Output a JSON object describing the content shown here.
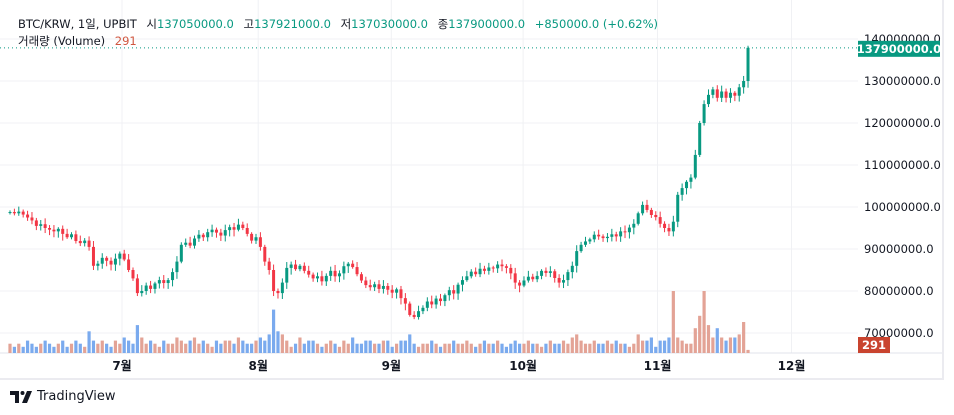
{
  "legend": {
    "symbol": "BTC/KRW, 1일, UPBIT",
    "open_label": "시",
    "open": "137050000.0",
    "high_label": "고",
    "high": "137921000.0",
    "low_label": "저",
    "low": "137030000.0",
    "close_label": "종",
    "close": "137900000.0",
    "change": "+850000.0 (+0.62%)",
    "volume_label": "거래량 (Volume)",
    "volume": "291"
  },
  "price_badge": "137900000.0",
  "volume_badge": "291",
  "brand": "TradingView",
  "colors": {
    "up": "#089981",
    "down": "#f23645",
    "vol_up": "#e3a396",
    "vol_down": "#7aaaee",
    "grid": "#f0f1f4",
    "badge_vol": "#c9442f"
  },
  "chart_data": {
    "type": "candlestick",
    "title": "BTC/KRW, 1일, UPBIT",
    "y_ticks": [
      "140000000.0",
      "130000000.0",
      "120000000.0",
      "110000000.0",
      "100000000.0",
      "90000000.0",
      "80000000.0",
      "70000000.0"
    ],
    "y_tick_values": [
      140,
      130,
      120,
      110,
      100,
      90,
      80,
      70
    ],
    "y_unit": "million KRW",
    "ylim": [
      69,
      140.5
    ],
    "x_ticks": [
      {
        "label": "7월",
        "index": 25.5
      },
      {
        "label": "8월",
        "index": 56.5
      },
      {
        "label": "9월",
        "index": 86.8
      },
      {
        "label": "10월",
        "index": 116.8
      },
      {
        "label": "11월",
        "index": 147.4
      },
      {
        "label": "12월",
        "index": 177.9
      }
    ],
    "x_count": 190,
    "closes": [
      98.8,
      98.5,
      98.9,
      98.2,
      97.5,
      96.8,
      95.5,
      95.9,
      95.0,
      94.6,
      94.2,
      94.8,
      93.6,
      92.8,
      93.5,
      91.9,
      91.4,
      92.0,
      90.5,
      86.0,
      86.5,
      87.9,
      87.2,
      86.3,
      87.7,
      88.9,
      87.5,
      85.0,
      83.0,
      79.5,
      80.0,
      81.3,
      80.5,
      81.8,
      82.6,
      81.9,
      82.6,
      84.5,
      87.0,
      91.0,
      91.5,
      90.8,
      92.5,
      93.4,
      92.8,
      94.0,
      94.6,
      93.9,
      93.2,
      94.5,
      95.2,
      94.6,
      95.8,
      95.0,
      93.6,
      92.0,
      92.8,
      90.5,
      87.0,
      85.0,
      80.0,
      79.5,
      82.0,
      85.5,
      86.3,
      85.2,
      86.0,
      84.8,
      83.9,
      83.0,
      83.5,
      82.3,
      83.6,
      84.8,
      83.5,
      84.2,
      85.9,
      86.5,
      85.7,
      84.0,
      82.5,
      81.4,
      80.9,
      81.6,
      80.5,
      81.2,
      80.3,
      79.6,
      80.4,
      78.3,
      77.0,
      74.3,
      73.8,
      75.2,
      76.0,
      77.5,
      76.8,
      78.2,
      77.6,
      79.0,
      80.2,
      79.4,
      81.5,
      82.6,
      83.5,
      84.6,
      84.0,
      85.3,
      84.8,
      85.6,
      85.4,
      86.3,
      85.9,
      85.5,
      84.2,
      82.0,
      81.3,
      82.5,
      83.4,
      82.8,
      83.6,
      84.8,
      84.3,
      84.7,
      83.1,
      82.0,
      82.6,
      84.5,
      86.0,
      89.5,
      91.0,
      91.8,
      92.3,
      93.4,
      93.0,
      92.6,
      92.9,
      93.5,
      93.0,
      94.2,
      94.0,
      95.1,
      96.0,
      98.5,
      100.5,
      99.3,
      98.1,
      97.6,
      96.0,
      95.0,
      94.2,
      96.5,
      102.9,
      104.5,
      106.0,
      107.0,
      112.4,
      120.0,
      124.5,
      126.7,
      128.0,
      126.0,
      127.5,
      126.0,
      127.2,
      126.5,
      128.5,
      130.0,
      137.9
    ],
    "volumes": [
      3,
      2,
      3,
      2,
      4,
      3,
      2,
      3,
      4,
      3,
      2,
      3,
      4,
      2,
      3,
      4,
      3,
      2,
      7,
      4,
      3,
      4,
      3,
      2,
      4,
      3,
      5,
      4,
      3,
      9,
      5,
      3,
      4,
      3,
      2,
      4,
      3,
      3,
      5,
      4,
      3,
      4,
      5,
      3,
      4,
      3,
      2,
      4,
      3,
      4,
      4,
      3,
      5,
      4,
      3,
      3,
      4,
      5,
      4,
      6,
      14,
      7,
      6,
      4,
      2,
      3,
      5,
      3,
      4,
      4,
      3,
      2,
      3,
      4,
      3,
      2,
      4,
      3,
      5,
      3,
      3,
      4,
      4,
      3,
      3,
      4,
      4,
      2,
      3,
      4,
      4,
      6,
      3,
      2,
      3,
      3,
      4,
      3,
      2,
      3,
      3,
      4,
      3,
      3,
      4,
      3,
      2,
      3,
      4,
      3,
      3,
      4,
      3,
      2,
      3,
      4,
      3,
      3,
      4,
      3,
      3,
      2,
      3,
      4,
      3,
      3,
      4,
      3,
      5,
      6,
      4,
      3,
      3,
      4,
      3,
      3,
      4,
      3,
      4,
      3,
      3,
      2,
      3,
      6,
      4,
      4,
      5,
      2,
      4,
      4,
      5,
      20,
      5,
      4,
      3,
      3,
      8,
      12,
      20,
      9,
      5,
      8,
      5,
      4,
      5,
      5,
      6,
      10,
      1
    ]
  }
}
